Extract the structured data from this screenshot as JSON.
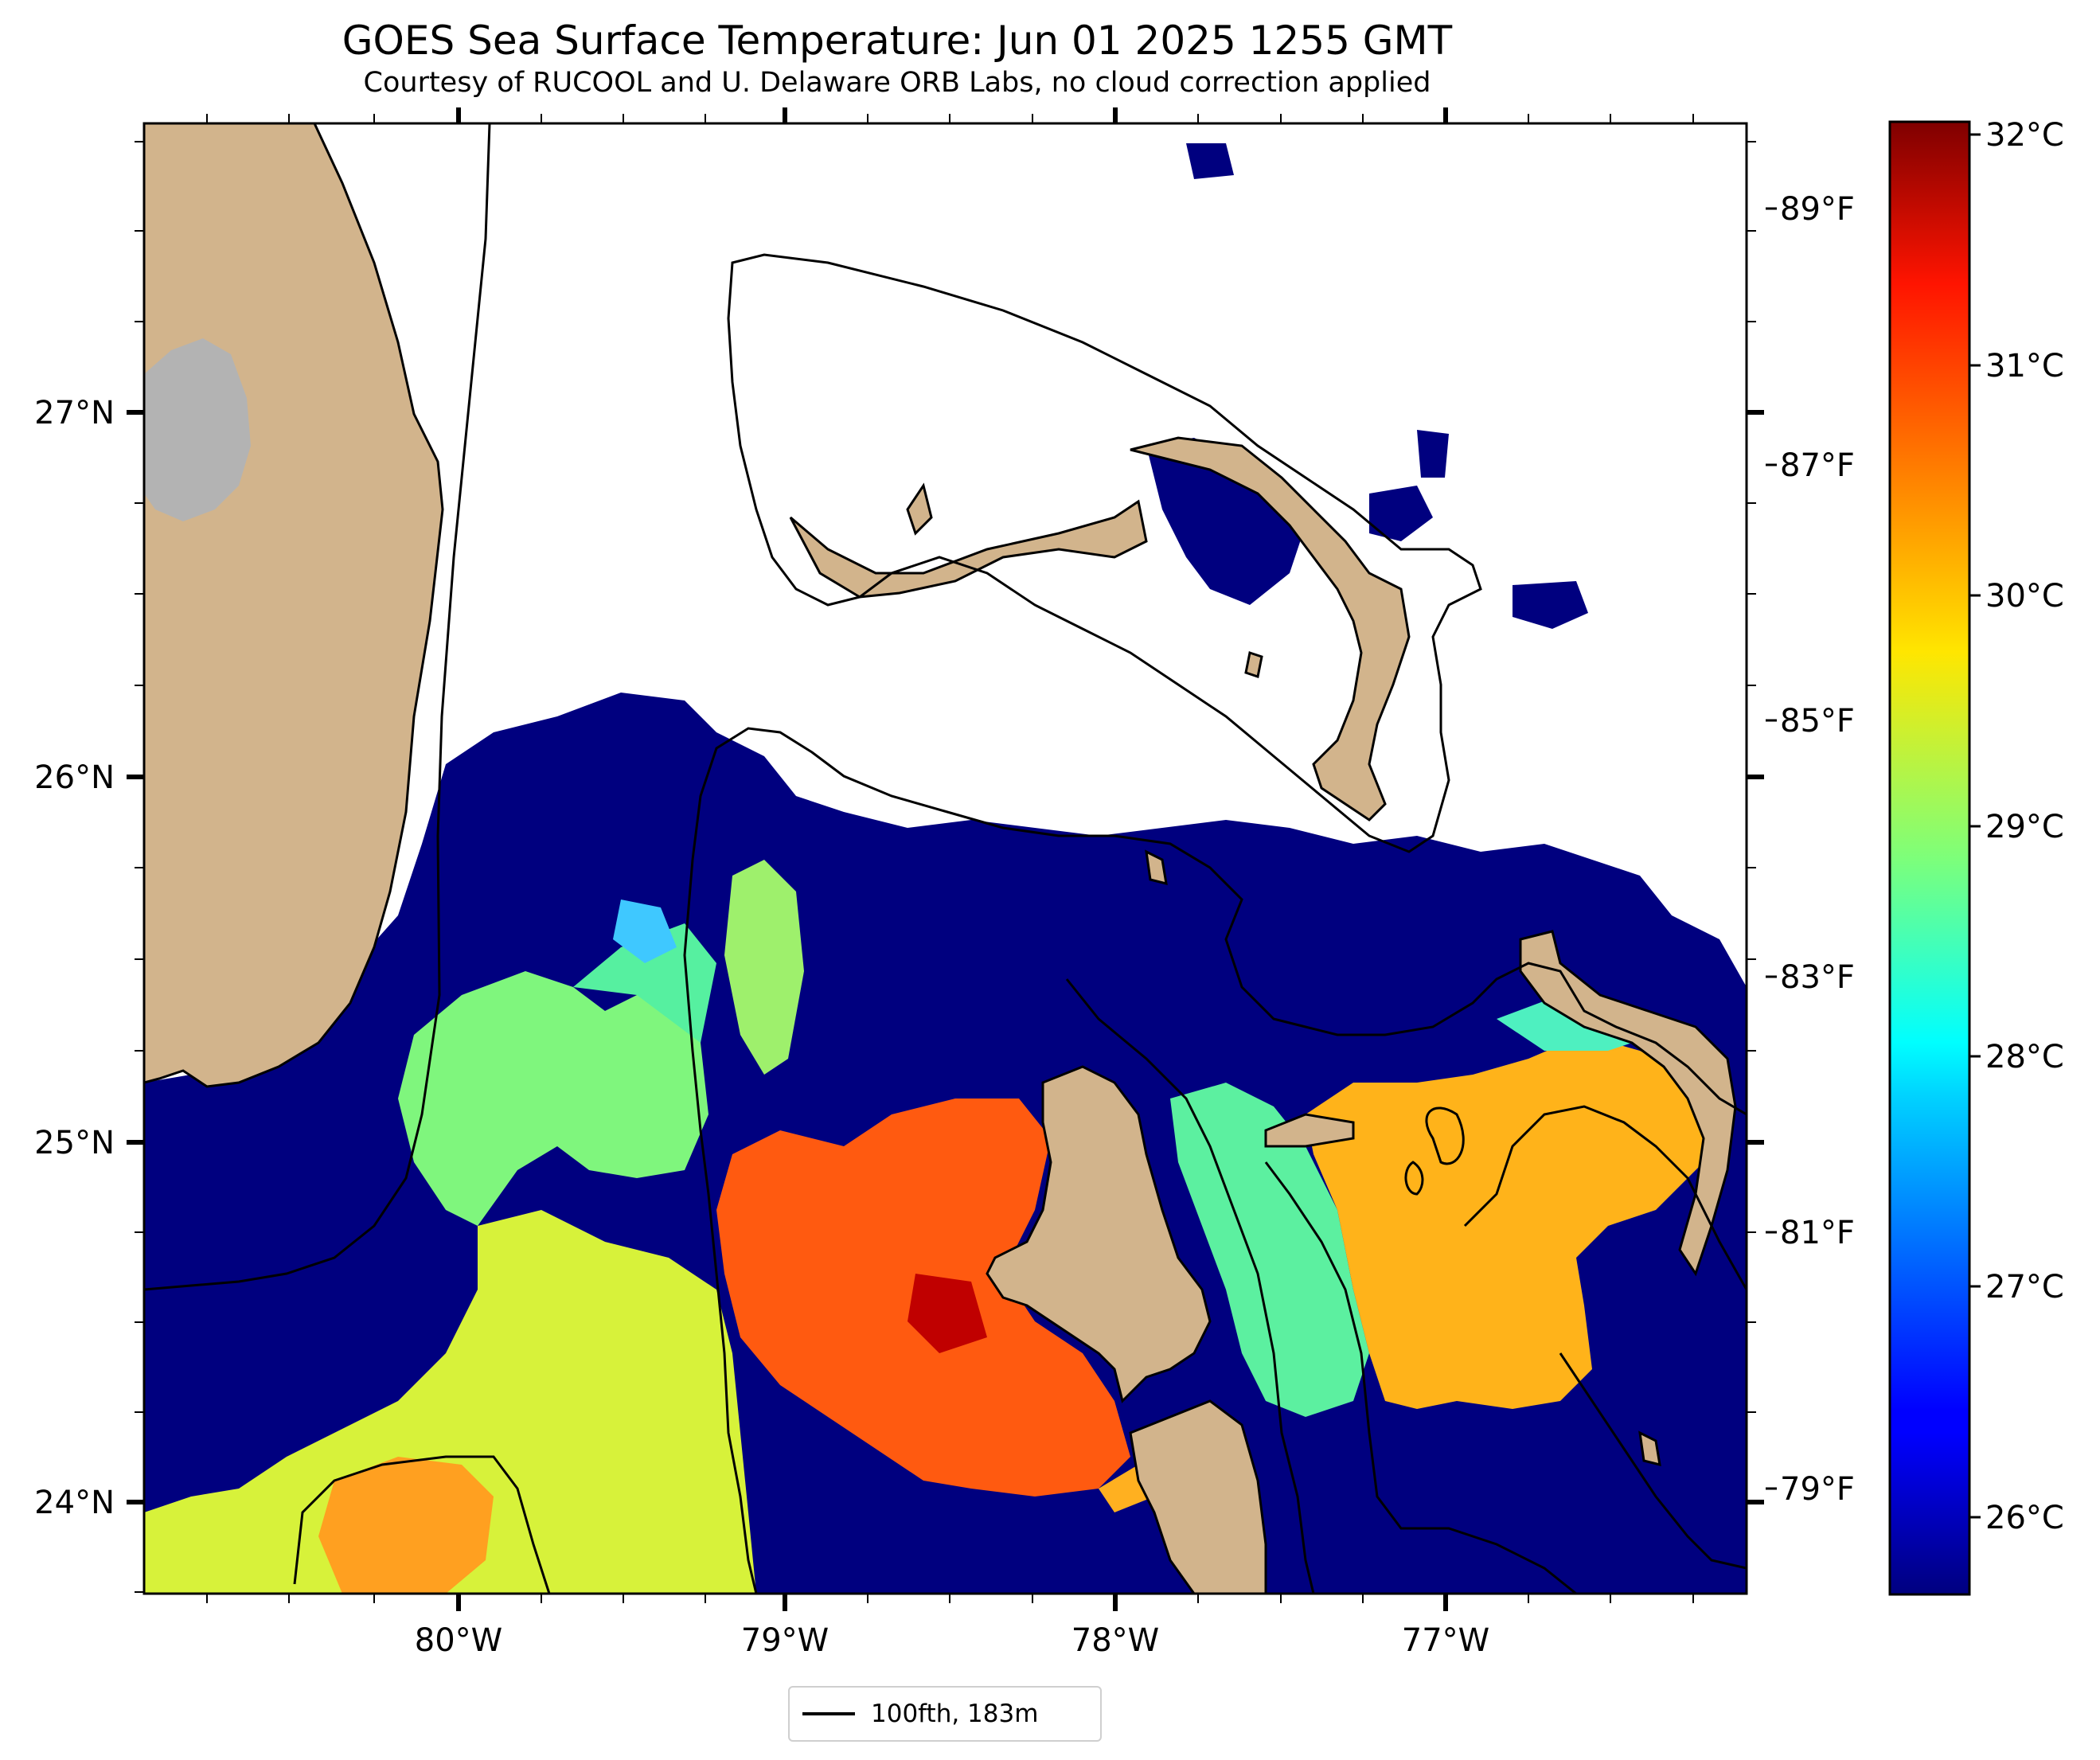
{
  "title": "GOES Sea Surface Temperature: Jun 01 2025 1255 GMT",
  "subtitle": "Courtesy of RUCOOL and U. Delaware ORB Labs, no cloud correction applied",
  "map": {
    "lon_range": [
      -80.95,
      -76.1
    ],
    "lat_range": [
      23.75,
      27.8
    ],
    "lon_ticks": [
      "80°W",
      "79°W",
      "78°W",
      "77°W"
    ],
    "lat_ticks": [
      "24°N",
      "25°N",
      "26°N",
      "27°N"
    ],
    "fahrenheit_ticks": [
      "79°F",
      "81°F",
      "83°F",
      "85°F",
      "87°F",
      "89°F"
    ],
    "land_color": "#d2b48c",
    "lake_color": "#b3b3b3",
    "no_data_color": "#ffffff"
  },
  "colorbar": {
    "colormap": "jet",
    "range_c": [
      25.6,
      32.0
    ],
    "celsius_ticks": [
      "26°C",
      "27°C",
      "28°C",
      "29°C",
      "30°C",
      "31°C",
      "32°C"
    ]
  },
  "legend": {
    "label": "100fth, 183m"
  }
}
